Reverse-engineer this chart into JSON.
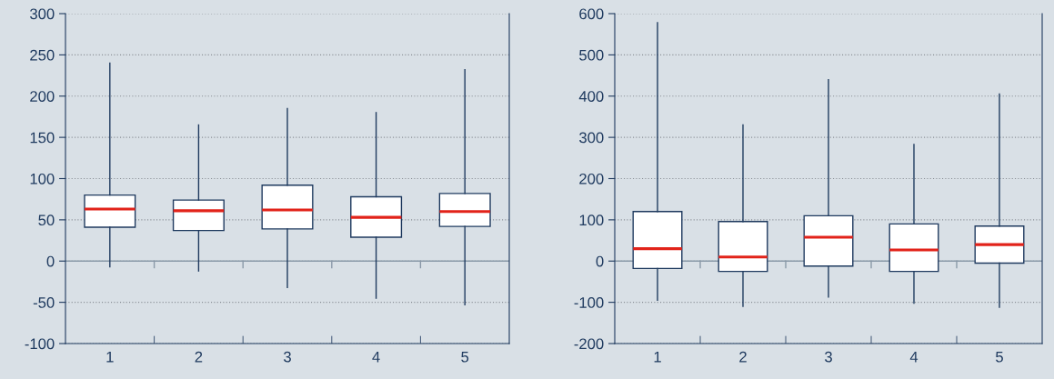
{
  "chart_data": [
    {
      "type": "box",
      "categories": [
        "1",
        "2",
        "3",
        "4",
        "5"
      ],
      "ylim": [
        -100,
        300
      ],
      "yticks": [
        -100,
        -50,
        0,
        50,
        100,
        150,
        200,
        250,
        300
      ],
      "grid": "y",
      "color": "#1f3a5f",
      "ref_lines": [
        {
          "axis": "y",
          "value": 0,
          "color": "#8a99a8"
        }
      ],
      "boxes": [
        {
          "low": -7,
          "q1": 41,
          "median": 63,
          "q3": 80,
          "high": 240
        },
        {
          "low": -12,
          "q1": 37,
          "median": 61,
          "q3": 74,
          "high": 165
        },
        {
          "low": -32,
          "q1": 39,
          "median": 62,
          "q3": 92,
          "high": 185
        },
        {
          "low": -45,
          "q1": 29,
          "median": 53,
          "q3": 78,
          "high": 180
        },
        {
          "low": -53,
          "q1": 42,
          "median": 60,
          "q3": 82,
          "high": 232
        }
      ]
    },
    {
      "type": "box",
      "categories": [
        "1",
        "2",
        "3",
        "4",
        "5"
      ],
      "ylim": [
        -200,
        600
      ],
      "yticks": [
        -200,
        -100,
        0,
        100,
        200,
        300,
        400,
        500,
        600
      ],
      "grid": "y",
      "color": "#1f3a5f",
      "ref_lines": [
        {
          "axis": "y",
          "value": 0,
          "color": "#8a99a8"
        }
      ],
      "boxes": [
        {
          "low": -95,
          "q1": -18,
          "median": 30,
          "q3": 120,
          "high": 578
        },
        {
          "low": -110,
          "q1": -25,
          "median": 10,
          "q3": 96,
          "high": 330
        },
        {
          "low": -87,
          "q1": -12,
          "median": 58,
          "q3": 110,
          "high": 440
        },
        {
          "low": -102,
          "q1": -25,
          "median": 27,
          "q3": 90,
          "high": 283
        },
        {
          "low": -112,
          "q1": -5,
          "median": 40,
          "q3": 85,
          "high": 405
        }
      ]
    }
  ]
}
